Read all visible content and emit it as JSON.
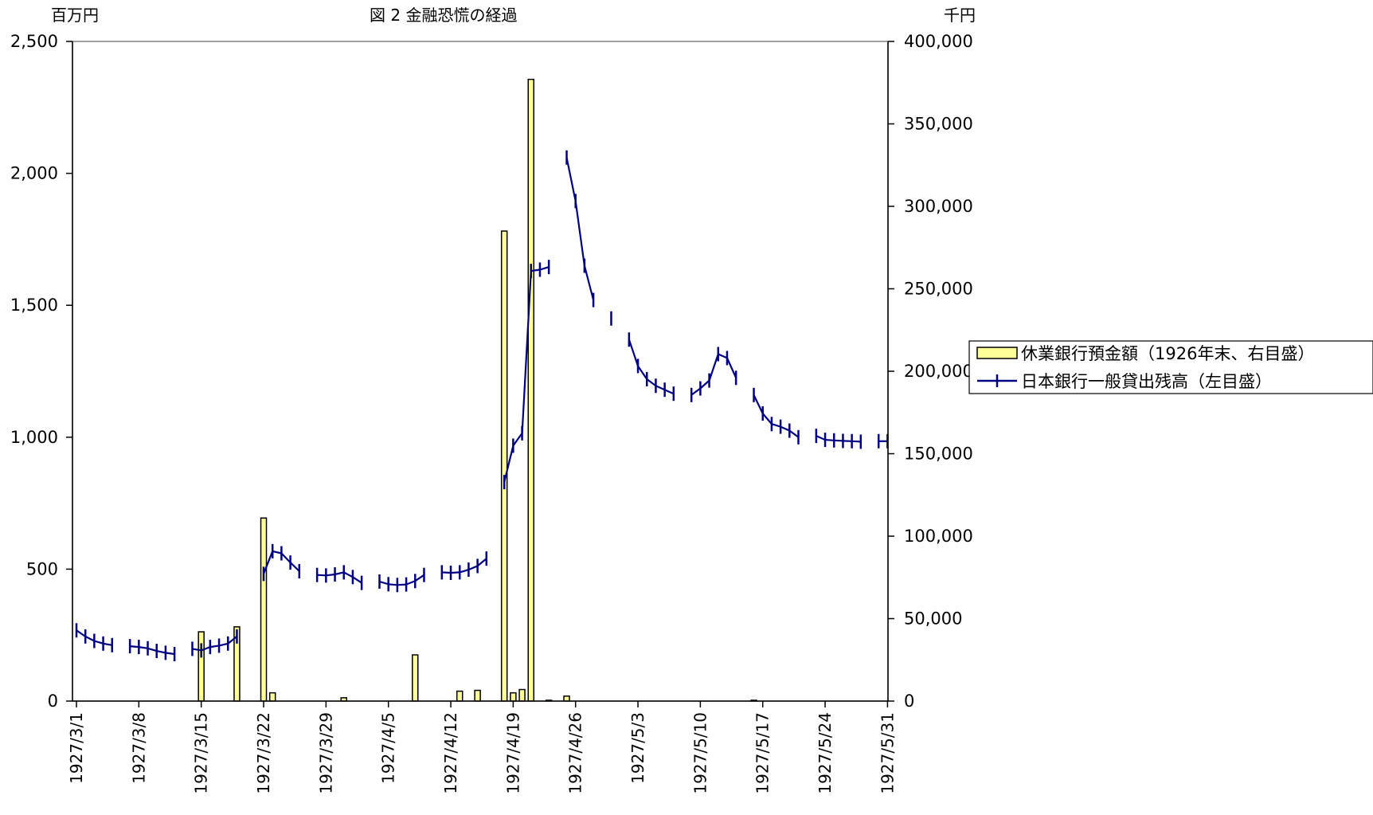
{
  "chart_data": {
    "type": "bar+line",
    "title": "図 2  金融恐慌の経過",
    "left_axis_unit": "百万円",
    "right_axis_unit": "千円",
    "left_ylim": [
      0,
      2500
    ],
    "left_ticks": [
      0,
      500,
      1000,
      1500,
      2000,
      2500
    ],
    "left_tick_labels": [
      "0",
      "500",
      "1,000",
      "1,500",
      "2,000",
      "2,500"
    ],
    "right_ylim": [
      0,
      400000
    ],
    "right_ticks": [
      0,
      50000,
      100000,
      150000,
      200000,
      250000,
      300000,
      350000,
      400000
    ],
    "right_tick_labels": [
      "0",
      "50,000",
      "100,000",
      "150,000",
      "200,000",
      "250,000",
      "300,000",
      "350,000",
      "400,000"
    ],
    "x_tick_labels": [
      "1927/3/1",
      "1927/3/8",
      "1927/3/15",
      "1927/3/22",
      "1927/3/29",
      "1927/4/5",
      "1927/4/12",
      "1927/4/19",
      "1927/4/26",
      "1927/5/3",
      "1927/5/10",
      "1927/5/17",
      "1927/5/24",
      "1927/5/31"
    ],
    "x_start": "1927/3/1",
    "x_end": "1927/5/31",
    "grid": false,
    "legend_position": "right",
    "series": [
      {
        "name": "休業銀行預金額（1926年末、右目盛）",
        "kind": "bar",
        "axis": "right",
        "color": "#ffff99",
        "points": [
          [
            "1927/3/15",
            42000
          ],
          [
            "1927/3/19",
            45000
          ],
          [
            "1927/3/22",
            111000
          ],
          [
            "1927/3/23",
            5000
          ],
          [
            "1927/3/31",
            2000
          ],
          [
            "1927/4/8",
            28000
          ],
          [
            "1927/4/13",
            6000
          ],
          [
            "1927/4/15",
            6500
          ],
          [
            "1927/4/18",
            285000
          ],
          [
            "1927/4/19",
            5000
          ],
          [
            "1927/4/20",
            7000
          ],
          [
            "1927/4/21",
            377000
          ],
          [
            "1927/4/23",
            500
          ],
          [
            "1927/4/25",
            3000
          ],
          [
            "1927/5/16",
            500
          ]
        ]
      },
      {
        "name": "日本銀行一般貸出残高（左目盛）",
        "kind": "line",
        "axis": "left",
        "color": "#000080",
        "segments": [
          [
            [
              "1927/3/1",
              268
            ],
            [
              "1927/3/2",
              245
            ],
            [
              "1927/3/3",
              228
            ],
            [
              "1927/3/4",
              218
            ],
            [
              "1927/3/5",
              212
            ]
          ],
          [
            [
              "1927/3/7",
              208
            ],
            [
              "1927/3/8",
              205
            ],
            [
              "1927/3/9",
              200
            ],
            [
              "1927/3/10",
              190
            ],
            [
              "1927/3/11",
              183
            ],
            [
              "1927/3/12",
              178
            ]
          ],
          [
            [
              "1927/3/14",
              198
            ],
            [
              "1927/3/15",
              192
            ],
            [
              "1927/3/16",
              205
            ],
            [
              "1927/3/17",
              210
            ],
            [
              "1927/3/18",
              218
            ],
            [
              "1927/3/19",
              245
            ]
          ],
          [
            [
              "1927/3/22",
              482
            ],
            [
              "1927/3/23",
              568
            ],
            [
              "1927/3/24",
              560
            ],
            [
              "1927/3/25",
              525
            ],
            [
              "1927/3/26",
              492
            ]
          ],
          [
            [
              "1927/3/28",
              478
            ],
            [
              "1927/3/29",
              476
            ],
            [
              "1927/3/30",
              480
            ],
            [
              "1927/3/31",
              488
            ],
            [
              "1927/4/1",
              470
            ],
            [
              "1927/4/2",
              448
            ]
          ],
          [
            [
              "1927/4/4",
              453
            ],
            [
              "1927/4/5",
              443
            ],
            [
              "1927/4/6",
              440
            ],
            [
              "1927/4/7",
              442
            ],
            [
              "1927/4/8",
              455
            ],
            [
              "1927/4/9",
              478
            ]
          ],
          [
            [
              "1927/4/11",
              488
            ],
            [
              "1927/4/12",
              486
            ],
            [
              "1927/4/13",
              488
            ],
            [
              "1927/4/14",
              498
            ],
            [
              "1927/4/15",
              512
            ],
            [
              "1927/4/16",
              540
            ]
          ],
          [
            [
              "1927/4/18",
              830
            ],
            [
              "1927/4/19",
              968
            ],
            [
              "1927/4/20",
              1015
            ],
            [
              "1927/4/21",
              1630
            ],
            [
              "1927/4/22",
              1635
            ],
            [
              "1927/4/23",
              1645
            ]
          ],
          [
            [
              "1927/4/25",
              2060
            ],
            [
              "1927/4/26",
              1895
            ],
            [
              "1927/4/27",
              1650
            ],
            [
              "1927/4/28",
              1520
            ]
          ],
          [
            [
              "1927/4/30",
              1450
            ]
          ],
          [
            [
              "1927/5/2",
              1370
            ],
            [
              "1927/5/3",
              1270
            ],
            [
              "1927/5/4",
              1220
            ],
            [
              "1927/5/5",
              1195
            ],
            [
              "1927/5/6",
              1180
            ],
            [
              "1927/5/7",
              1165
            ]
          ],
          [
            [
              "1927/5/9",
              1160
            ],
            [
              "1927/5/10",
              1185
            ],
            [
              "1927/5/11",
              1215
            ],
            [
              "1927/5/12",
              1315
            ],
            [
              "1927/5/13",
              1300
            ],
            [
              "1927/5/14",
              1225
            ]
          ],
          [
            [
              "1927/5/16",
              1160
            ],
            [
              "1927/5/17",
              1090
            ],
            [
              "1927/5/18",
              1050
            ],
            [
              "1927/5/19",
              1040
            ],
            [
              "1927/5/20",
              1025
            ],
            [
              "1927/5/21",
              1000
            ]
          ],
          [
            [
              "1927/5/23",
              1005
            ],
            [
              "1927/5/24",
              990
            ],
            [
              "1927/5/25",
              988
            ],
            [
              "1927/5/26",
              986
            ],
            [
              "1927/5/27",
              985
            ],
            [
              "1927/5/28",
              983
            ]
          ],
          [
            [
              "1927/5/30",
              985
            ],
            [
              "1927/5/31",
              985
            ]
          ]
        ]
      }
    ]
  }
}
